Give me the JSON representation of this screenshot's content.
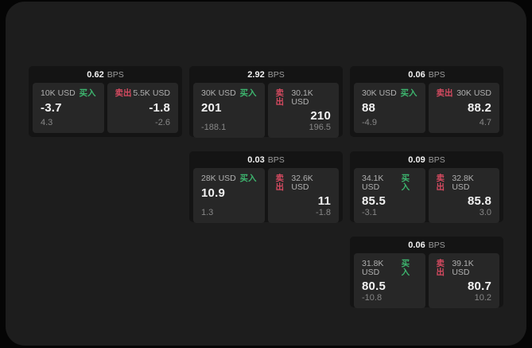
{
  "labels": {
    "buy": "买入",
    "sell": "卖出",
    "bps_unit": "BPS"
  },
  "colors": {
    "buy_green": "#3db56e",
    "sell_red": "#d54a60",
    "window_bg": "#1d1d1d",
    "card_bg": "#141414",
    "cell_bg": "#272727"
  },
  "cards": [
    {
      "col": 1,
      "row": 1,
      "bps": "0.62",
      "buy": {
        "amount": "10K USD",
        "value": "-3.7",
        "delta": "4.3"
      },
      "sell": {
        "amount": "5.5K USD",
        "value": "-1.8",
        "delta": "-2.6"
      }
    },
    {
      "col": 2,
      "row": 1,
      "bps": "2.92",
      "buy": {
        "amount": "30K USD",
        "value": "201",
        "delta": "-188.1"
      },
      "sell": {
        "amount": "30.1K USD",
        "value": "210",
        "delta": "196.5"
      }
    },
    {
      "col": 3,
      "row": 1,
      "bps": "0.06",
      "buy": {
        "amount": "30K USD",
        "value": "88",
        "delta": "-4.9"
      },
      "sell": {
        "amount": "30K USD",
        "value": "88.2",
        "delta": "4.7"
      }
    },
    {
      "col": 2,
      "row": 2,
      "bps": "0.03",
      "buy": {
        "amount": "28K USD",
        "value": "10.9",
        "delta": "1.3"
      },
      "sell": {
        "amount": "32.6K USD",
        "value": "11",
        "delta": "-1.8"
      }
    },
    {
      "col": 3,
      "row": 2,
      "bps": "0.09",
      "buy": {
        "amount": "34.1K USD",
        "value": "85.5",
        "delta": "-3.1"
      },
      "sell": {
        "amount": "32.8K USD",
        "value": "85.8",
        "delta": "3.0"
      }
    },
    {
      "col": 3,
      "row": 3,
      "bps": "0.06",
      "buy": {
        "amount": "31.8K USD",
        "value": "80.5",
        "delta": "-10.8"
      },
      "sell": {
        "amount": "39.1K USD",
        "value": "80.7",
        "delta": "10.2"
      }
    }
  ]
}
